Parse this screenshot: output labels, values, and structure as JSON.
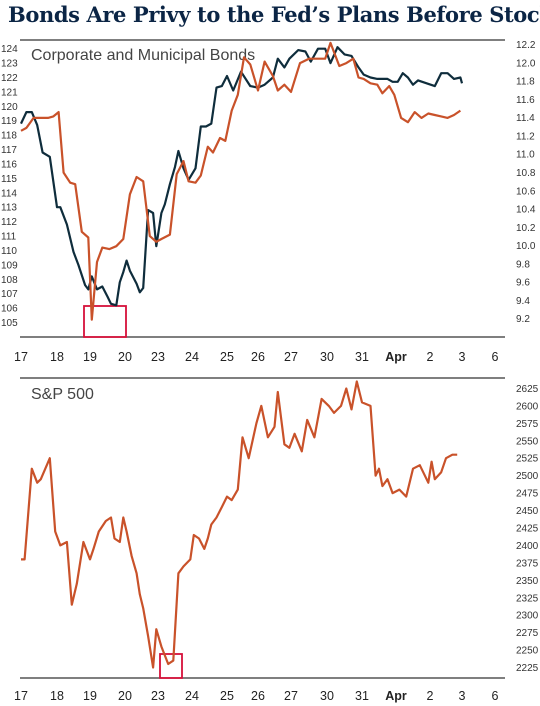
{
  "title": "Bonds Are Privy to the Fed’s Plans Before Stocks",
  "chart_data": [
    {
      "type": "line",
      "label": "Corporate and Municipal Bonds",
      "x_tick_labels": [
        "17",
        "18",
        "19",
        "20",
        "23",
        "24",
        "25",
        "26",
        "27",
        "30",
        "31",
        "Apr",
        "2",
        "3",
        "6"
      ],
      "y_left_ticks": [
        105,
        106,
        107,
        108,
        109,
        110,
        111,
        112,
        113,
        114,
        115,
        116,
        117,
        118,
        119,
        120,
        121,
        122,
        123,
        124
      ],
      "y_right_ticks": [
        "9.2",
        "9.4",
        "9.6",
        "9.8",
        "10.0",
        "10.2",
        "10.4",
        "10.6",
        "10.8",
        "11.0",
        "11.2",
        "11.4",
        "11.6",
        "11.8",
        "12.0",
        "12.2"
      ],
      "ylim_left": [
        104,
        124.6
      ],
      "ylim_right": [
        9.0,
        12.25
      ],
      "series": [
        {
          "color": "#0f2d3c",
          "axis": "left",
          "x": [
            0,
            0.15,
            0.3,
            0.45,
            0.6,
            0.8,
            1.0,
            1.1,
            1.3,
            1.5,
            1.65,
            1.85,
            1.95,
            2.05,
            2.2,
            2.35,
            2.5,
            2.6,
            2.75,
            2.85,
            2.95,
            3.05,
            3.15,
            3.35,
            3.45,
            3.55,
            3.7,
            3.85,
            3.95,
            4.1,
            4.2,
            4.35,
            4.5,
            4.6,
            4.75,
            4.9,
            5.1,
            5.25,
            5.4,
            5.55,
            5.7,
            5.85,
            6.0,
            6.2,
            6.45,
            6.75,
            7.0,
            7.2,
            7.45,
            7.6,
            7.8,
            7.95,
            8.2,
            8.4,
            8.55,
            8.75,
            8.95,
            9.1,
            9.3,
            9.5,
            9.7,
            9.9,
            10.05,
            10.25,
            10.45,
            10.6,
            10.75,
            10.9,
            11.05,
            11.2,
            11.35,
            11.5,
            11.65,
            11.9,
            12.15,
            12.35,
            12.55,
            12.75,
            12.95,
            13.0
          ],
          "y": [
            118.8,
            119.6,
            119.6,
            118.7,
            116.8,
            116.5,
            113,
            113,
            111.8,
            109.9,
            109,
            107.6,
            107.3,
            108.2,
            107.3,
            107.5,
            106.8,
            106.3,
            106.2,
            107.8,
            108.5,
            109.3,
            108.6,
            107.7,
            107.1,
            107.4,
            112.8,
            112.6,
            110.3,
            112.6,
            113.2,
            114.6,
            115.8,
            116.9,
            115.7,
            114.9,
            115.7,
            118.6,
            118.6,
            118.8,
            121.3,
            121.4,
            122.1,
            121.1,
            122.4,
            121.4,
            121.3,
            121.5,
            122.0,
            123.3,
            122.7,
            123.3,
            123.9,
            123.8,
            123.1,
            124.0,
            124.0,
            123.0,
            124.1,
            123.6,
            123.5,
            122.7,
            122.2,
            122.0,
            121.9,
            121.9,
            121.9,
            121.7,
            121.7,
            122.3,
            122.0,
            121.5,
            121.8,
            121.6,
            121.4,
            122.3,
            122.3,
            121.9,
            122.0,
            121.6
          ]
        },
        {
          "color": "#c9522a",
          "axis": "left",
          "x": [
            0,
            0.15,
            0.35,
            0.55,
            0.75,
            0.9,
            1.05,
            1.2,
            1.4,
            1.55,
            1.75,
            1.95,
            2.05,
            2.2,
            2.35,
            2.55,
            2.75,
            2.95,
            3.15,
            3.35,
            3.55,
            3.75,
            3.95,
            4.1,
            4.35,
            4.55,
            4.75,
            4.9,
            5.1,
            5.25,
            5.45,
            5.6,
            5.8,
            5.95,
            6.15,
            6.35,
            6.55,
            6.75,
            7.0,
            7.2,
            7.45,
            7.6,
            7.8,
            8.0,
            8.25,
            8.5,
            8.75,
            8.95,
            9.1,
            9.35,
            9.55,
            9.75,
            9.9,
            10.05,
            10.25,
            10.45,
            10.6,
            10.8,
            10.95,
            11.15,
            11.35,
            11.55,
            11.75,
            11.95,
            12.15,
            12.35,
            12.55,
            12.75,
            12.95
          ],
          "y": [
            118.3,
            118.5,
            119.2,
            119.2,
            119.2,
            119.3,
            119.6,
            115.4,
            114.7,
            114.6,
            111.3,
            110.9,
            105.2,
            109.2,
            110.2,
            110.1,
            110.3,
            110.8,
            113.9,
            115.1,
            114.8,
            111.0,
            110.6,
            110.8,
            111.1,
            115.3,
            116.2,
            114.8,
            114.7,
            115.2,
            117.2,
            116.8,
            117.8,
            117.6,
            119.7,
            120.8,
            123.4,
            122.9,
            121.1,
            123.1,
            122.1,
            121.1,
            121.5,
            121.0,
            123.0,
            123.3,
            123.3,
            123.3,
            124.4,
            122.8,
            123.0,
            123.3,
            122.0,
            121.9,
            121.6,
            121.5,
            120.9,
            121.4,
            120.8,
            119.2,
            118.9,
            119.6,
            119.2,
            119.5,
            119.4,
            119.3,
            119.2,
            119.4,
            119.7
          ]
        }
      ]
    },
    {
      "type": "line",
      "label": "S&P 500",
      "x_tick_labels": [
        "17",
        "18",
        "19",
        "20",
        "23",
        "24",
        "25",
        "26",
        "27",
        "30",
        "31",
        "Apr",
        "2",
        "3",
        "6"
      ],
      "y_right_ticks": [
        2225,
        2250,
        2275,
        2300,
        2325,
        2350,
        2375,
        2400,
        2425,
        2450,
        2475,
        2500,
        2525,
        2550,
        2575,
        2600,
        2625
      ],
      "ylim": [
        2210,
        2640
      ],
      "series": [
        {
          "color": "#c9522a",
          "axis": "right",
          "x": [
            0,
            0.1,
            0.3,
            0.45,
            0.55,
            0.8,
            0.95,
            1.1,
            1.3,
            1.45,
            1.6,
            1.8,
            2.0,
            2.1,
            2.25,
            2.45,
            2.6,
            2.7,
            2.85,
            2.95,
            3.05,
            3.2,
            3.35,
            3.45,
            3.55,
            3.7,
            3.85,
            3.95,
            4.1,
            4.3,
            4.45,
            4.6,
            4.75,
            4.95,
            5.05,
            5.2,
            5.35,
            5.45,
            5.55,
            5.7,
            5.85,
            6.0,
            6.15,
            6.35,
            6.5,
            6.7,
            6.95,
            7.1,
            7.3,
            7.5,
            7.6,
            7.8,
            7.95,
            8.1,
            8.3,
            8.45,
            8.65,
            8.85,
            9.05,
            9.2,
            9.4,
            9.55,
            9.7,
            9.85,
            10.0,
            10.25,
            10.4,
            10.5,
            10.6,
            10.75,
            10.9,
            11.1,
            11.3,
            11.5,
            11.7,
            11.95,
            12.05,
            12.15,
            12.35,
            12.5,
            12.7,
            12.85
          ],
          "y": [
            2380,
            2380,
            2510,
            2490,
            2495,
            2525,
            2420,
            2400,
            2405,
            2315,
            2345,
            2405,
            2380,
            2395,
            2420,
            2435,
            2440,
            2410,
            2405,
            2440,
            2420,
            2385,
            2360,
            2330,
            2310,
            2270,
            2225,
            2280,
            2255,
            2230,
            2235,
            2360,
            2370,
            2380,
            2415,
            2410,
            2395,
            2410,
            2430,
            2440,
            2455,
            2470,
            2465,
            2480,
            2555,
            2525,
            2575,
            2600,
            2555,
            2570,
            2620,
            2545,
            2540,
            2560,
            2535,
            2580,
            2555,
            2610,
            2600,
            2590,
            2600,
            2625,
            2595,
            2635,
            2605,
            2600,
            2500,
            2510,
            2485,
            2495,
            2475,
            2480,
            2470,
            2510,
            2515,
            2490,
            2520,
            2495,
            2505,
            2525,
            2530,
            2530
          ]
        }
      ]
    }
  ]
}
